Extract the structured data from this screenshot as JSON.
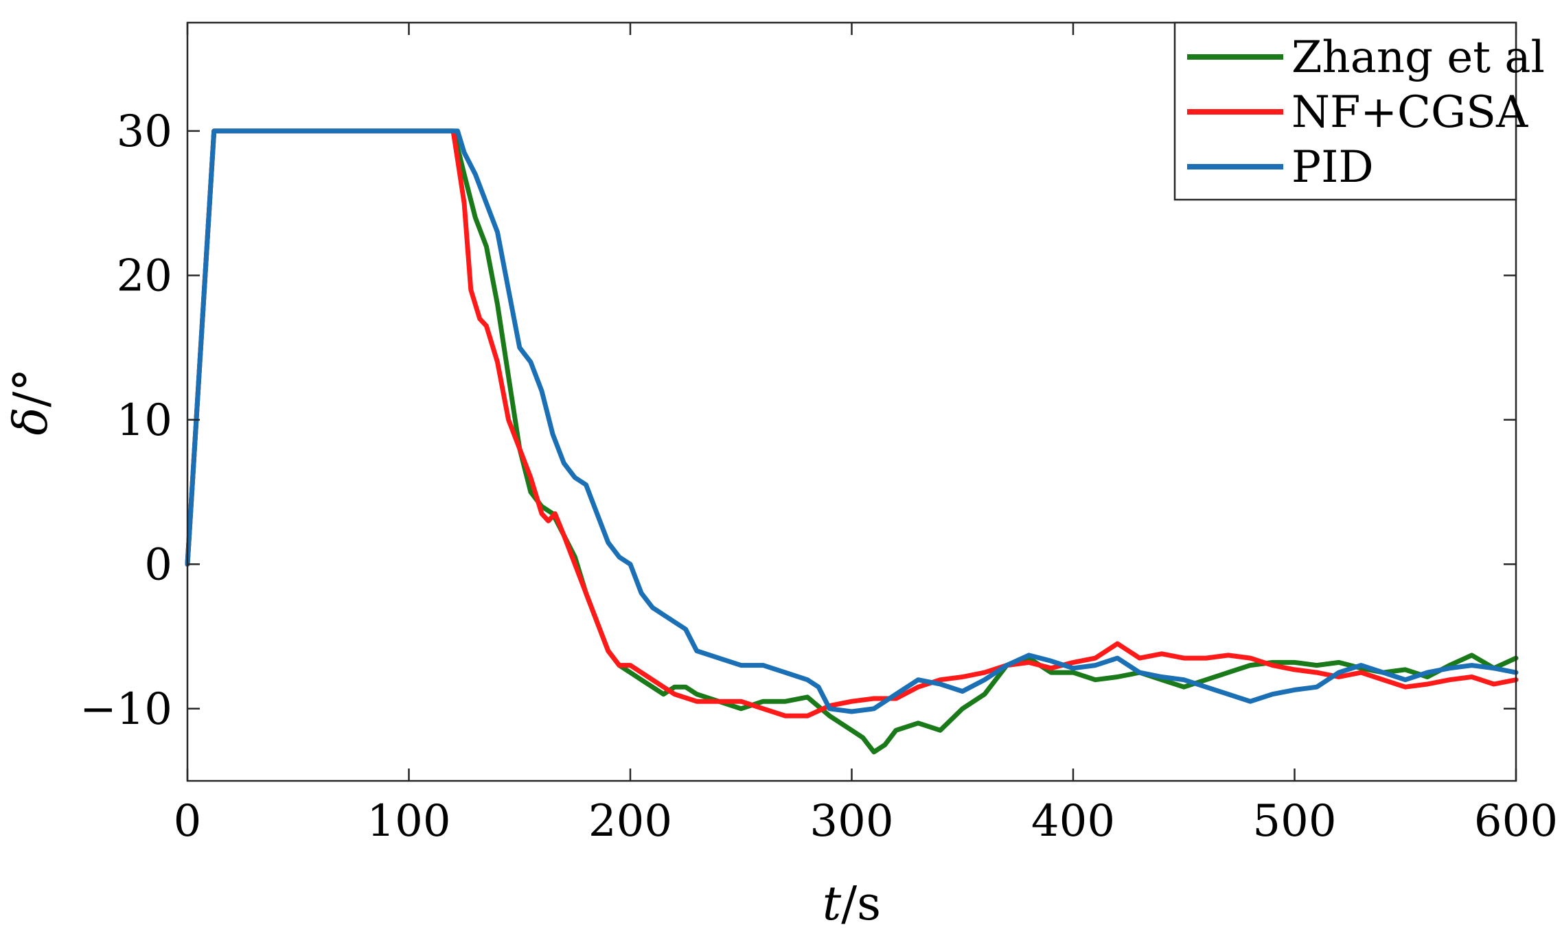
{
  "chart_data": {
    "type": "line",
    "xlabel_var": "t",
    "xlabel_unit": "/s",
    "ylabel_var": "δ",
    "ylabel_unit": "/°",
    "xlim": [
      0,
      600
    ],
    "ylim": [
      -15,
      37.5
    ],
    "xticks": [
      0,
      100,
      200,
      300,
      400,
      500,
      600
    ],
    "xtick_labels": [
      "0",
      "100",
      "200",
      "300",
      "400",
      "500",
      "600"
    ],
    "yticks": [
      -10,
      0,
      10,
      20,
      30
    ],
    "ytick_labels": [
      "−10",
      "0",
      "10",
      "20",
      "30"
    ],
    "grid": false,
    "legend_position": "top-right",
    "series": [
      {
        "name": "Zhang et al",
        "color": "#1a7a1a",
        "x": [
          0,
          12,
          120,
          121,
          125,
          130,
          135,
          140,
          145,
          150,
          155,
          160,
          165,
          170,
          175,
          180,
          185,
          190,
          195,
          200,
          205,
          210,
          215,
          220,
          225,
          230,
          240,
          250,
          260,
          270,
          280,
          290,
          300,
          305,
          310,
          315,
          320,
          330,
          340,
          350,
          360,
          370,
          380,
          390,
          400,
          410,
          420,
          430,
          440,
          450,
          460,
          470,
          480,
          490,
          500,
          510,
          520,
          530,
          540,
          550,
          560,
          570,
          580,
          590,
          600
        ],
        "y": [
          0,
          30,
          30,
          29.5,
          27,
          24,
          22,
          18,
          13,
          8,
          5,
          4,
          3.5,
          2,
          0.5,
          -2,
          -4,
          -6,
          -7,
          -7.5,
          -8,
          -8.5,
          -9,
          -8.5,
          -8.5,
          -9,
          -9.5,
          -10,
          -9.5,
          -9.5,
          -9.2,
          -10.5,
          -11.5,
          -12,
          -13,
          -12.5,
          -11.5,
          -11,
          -11.5,
          -10,
          -9,
          -7,
          -6.5,
          -7.5,
          -7.5,
          -8,
          -7.8,
          -7.5,
          -8,
          -8.5,
          -8,
          -7.5,
          -7,
          -6.8,
          -6.8,
          -7,
          -6.8,
          -7.2,
          -7.5,
          -7.3,
          -7.8,
          -7,
          -6.3,
          -7.2,
          -6.5
        ]
      },
      {
        "name": "NF+CGSA",
        "color": "#ff1a1a",
        "x": [
          0,
          12,
          120,
          122,
          125,
          128,
          132,
          135,
          140,
          145,
          150,
          155,
          160,
          163,
          166,
          170,
          175,
          180,
          185,
          190,
          195,
          200,
          205,
          210,
          215,
          220,
          230,
          240,
          250,
          260,
          270,
          280,
          290,
          300,
          310,
          320,
          330,
          340,
          350,
          360,
          370,
          380,
          390,
          400,
          410,
          420,
          430,
          440,
          450,
          460,
          470,
          480,
          490,
          500,
          510,
          520,
          530,
          540,
          550,
          560,
          570,
          580,
          590,
          600
        ],
        "y": [
          0,
          30,
          30,
          28,
          25,
          19,
          17,
          16.5,
          14,
          10,
          8,
          6,
          3.5,
          3,
          3.5,
          2,
          0,
          -2,
          -4,
          -6,
          -7,
          -7,
          -7.5,
          -8,
          -8.5,
          -9,
          -9.5,
          -9.5,
          -9.5,
          -10,
          -10.5,
          -10.5,
          -9.8,
          -9.5,
          -9.3,
          -9.3,
          -8.5,
          -8,
          -7.8,
          -7.5,
          -7,
          -6.8,
          -7.2,
          -6.8,
          -6.5,
          -5.5,
          -6.5,
          -6.2,
          -6.5,
          -6.5,
          -6.3,
          -6.5,
          -7,
          -7.3,
          -7.5,
          -7.8,
          -7.5,
          -8,
          -8.5,
          -8.3,
          -8,
          -7.8,
          -8.3,
          -8
        ]
      },
      {
        "name": "PID",
        "color": "#1a6fb5",
        "x": [
          0,
          12,
          120,
          122,
          125,
          130,
          135,
          140,
          145,
          150,
          155,
          160,
          165,
          170,
          175,
          180,
          185,
          190,
          195,
          200,
          205,
          210,
          215,
          220,
          225,
          230,
          240,
          250,
          260,
          270,
          280,
          285,
          290,
          300,
          310,
          320,
          330,
          340,
          350,
          360,
          370,
          380,
          390,
          400,
          410,
          420,
          430,
          440,
          450,
          460,
          470,
          480,
          490,
          500,
          510,
          520,
          530,
          540,
          550,
          560,
          570,
          580,
          590,
          600
        ],
        "y": [
          0,
          30,
          30,
          30,
          28.5,
          27,
          25,
          23,
          19,
          15,
          14,
          12,
          9,
          7,
          6,
          5.5,
          3.5,
          1.5,
          0.5,
          0,
          -2,
          -3,
          -3.5,
          -4,
          -4.5,
          -6,
          -6.5,
          -7,
          -7,
          -7.5,
          -8,
          -8.5,
          -10,
          -10.2,
          -10,
          -9,
          -8,
          -8.3,
          -8.8,
          -8,
          -7,
          -6.3,
          -6.7,
          -7.2,
          -7,
          -6.5,
          -7.5,
          -7.8,
          -8,
          -8.5,
          -9,
          -9.5,
          -9,
          -8.7,
          -8.5,
          -7.5,
          -7,
          -7.5,
          -8,
          -7.5,
          -7.2,
          -7,
          -7.2,
          -7.5
        ]
      }
    ]
  }
}
